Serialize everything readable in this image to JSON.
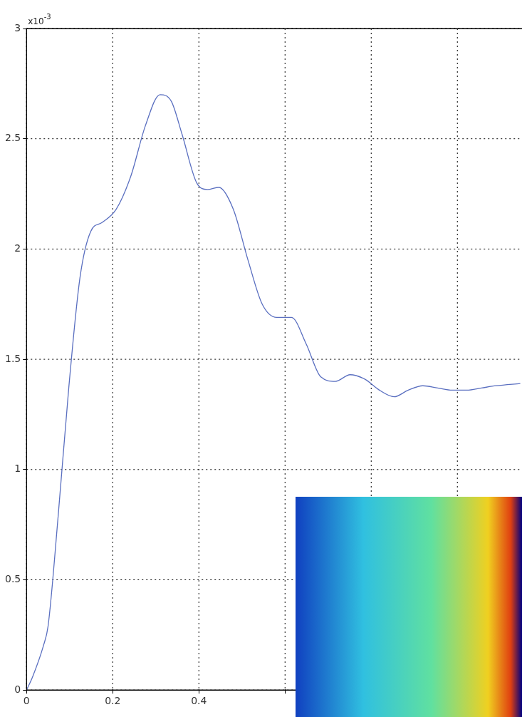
{
  "chart_data": {
    "type": "line",
    "x": [
      0,
      0.014,
      0.039,
      0.05,
      0.073,
      0.098,
      0.124,
      0.149,
      0.175,
      0.208,
      0.242,
      0.276,
      0.31,
      0.336,
      0.361,
      0.395,
      0.42,
      0.446,
      0.48,
      0.514,
      0.547,
      0.581,
      0.615,
      0.649,
      0.683,
      0.717,
      0.751,
      0.785,
      0.819,
      0.853,
      0.886,
      0.92,
      0.954,
      0.988,
      1.022,
      1.056,
      1.09,
      1.146
    ],
    "series": [
      {
        "color": "#5a6fc0",
        "values": [
          0,
          0.06,
          0.2,
          0.29,
          0.78,
          1.37,
          1.87,
          2.08,
          2.12,
          2.18,
          2.33,
          2.56,
          2.7,
          2.67,
          2.52,
          2.3,
          2.27,
          2.28,
          2.18,
          1.95,
          1.75,
          1.69,
          1.69,
          1.57,
          1.42,
          1.4,
          1.43,
          1.41,
          1.36,
          1.33,
          1.36,
          1.38,
          1.37,
          1.36,
          1.36,
          1.37,
          1.38,
          1.39
        ]
      }
    ],
    "xlim": [
      0,
      1.15
    ],
    "xticks": [
      0,
      0.2,
      0.4,
      {
        "value": 0.6,
        "label": null
      },
      {
        "value": 0.8,
        "label": null
      },
      {
        "value": 1,
        "label": null
      }
    ],
    "ylim": [
      0,
      3
    ],
    "yticks": [
      0,
      0.5,
      1,
      1.5,
      2,
      2.5,
      3
    ],
    "annotations": [
      "x10$^{-3}$"
    ],
    "grid": true,
    "legend": false,
    "marker": "none",
    "line_style": "solid"
  }
}
